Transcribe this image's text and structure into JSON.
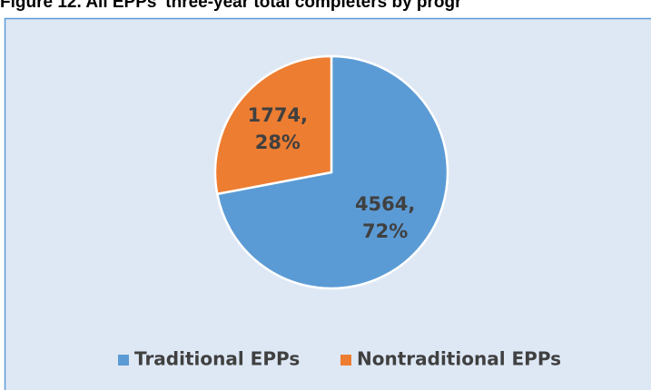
{
  "chart_data": {
    "type": "pie",
    "title": "Figure 12. All EPPs' three-year total completers by progr",
    "categories": [
      "Traditional EPPs",
      "Nontraditional EPPs"
    ],
    "values": [
      4564,
      1774
    ],
    "value_labels": [
      [
        "4564,",
        "72%"
      ],
      [
        "1774,",
        "28%"
      ]
    ],
    "colors": [
      "#5b9bd5",
      "#ed7d31"
    ],
    "legend": "bottom"
  }
}
